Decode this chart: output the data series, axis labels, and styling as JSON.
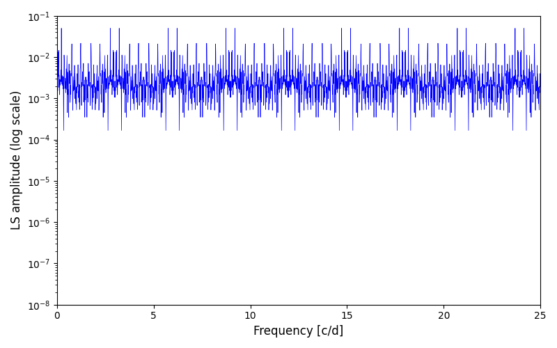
{
  "xlabel": "Frequency [c/d]",
  "ylabel": "LS amplitude (log scale)",
  "xlim": [
    0,
    25
  ],
  "ylim": [
    1e-08,
    0.1
  ],
  "line_color": "#0000ff",
  "line_width": 0.5,
  "background_color": "#ffffff",
  "figsize": [
    8.0,
    5.0
  ],
  "dpi": 100,
  "xticks": [
    0,
    5,
    10,
    15,
    20,
    25
  ],
  "seed": 12345,
  "n_points": 2500,
  "freq_max": 25.0
}
